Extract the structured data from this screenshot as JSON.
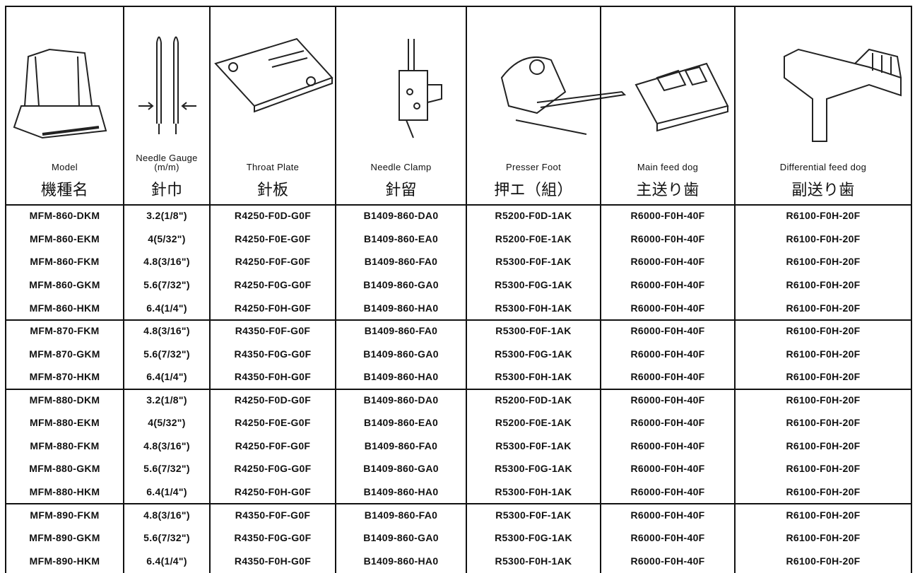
{
  "table": {
    "columns": [
      {
        "en": "Model",
        "ja": "機種名"
      },
      {
        "en": "Needle Gauge (m/m)",
        "ja": "針巾"
      },
      {
        "en": "Throat Plate",
        "ja": "針板"
      },
      {
        "en": "Needle Clamp",
        "ja": "針留"
      },
      {
        "en": "Presser Foot",
        "ja": "押エ（組）"
      },
      {
        "en": "Main feed dog",
        "ja": "主送り歯"
      },
      {
        "en": "Differential feed dog",
        "ja": "副送り歯"
      }
    ],
    "groups": [
      [
        [
          "MFM-860-DKM",
          "3.2(1/8\")",
          "R4250-F0D-G0F",
          "B1409-860-DA0",
          "R5200-F0D-1AK",
          "R6000-F0H-40F",
          "R6100-F0H-20F"
        ],
        [
          "MFM-860-EKM",
          "4(5/32\")",
          "R4250-F0E-G0F",
          "B1409-860-EA0",
          "R5200-F0E-1AK",
          "R6000-F0H-40F",
          "R6100-F0H-20F"
        ],
        [
          "MFM-860-FKM",
          "4.8(3/16\")",
          "R4250-F0F-G0F",
          "B1409-860-FA0",
          "R5300-F0F-1AK",
          "R6000-F0H-40F",
          "R6100-F0H-20F"
        ],
        [
          "MFM-860-GKM",
          "5.6(7/32\")",
          "R4250-F0G-G0F",
          "B1409-860-GA0",
          "R5300-F0G-1AK",
          "R6000-F0H-40F",
          "R6100-F0H-20F"
        ],
        [
          "MFM-860-HKM",
          "6.4(1/4\")",
          "R4250-F0H-G0F",
          "B1409-860-HA0",
          "R5300-F0H-1AK",
          "R6000-F0H-40F",
          "R6100-F0H-20F"
        ]
      ],
      [
        [
          "MFM-870-FKM",
          "4.8(3/16\")",
          "R4350-F0F-G0F",
          "B1409-860-FA0",
          "R5300-F0F-1AK",
          "R6000-F0H-40F",
          "R6100-F0H-20F"
        ],
        [
          "MFM-870-GKM",
          "5.6(7/32\")",
          "R4350-F0G-G0F",
          "B1409-860-GA0",
          "R5300-F0G-1AK",
          "R6000-F0H-40F",
          "R6100-F0H-20F"
        ],
        [
          "MFM-870-HKM",
          "6.4(1/4\")",
          "R4350-F0H-G0F",
          "B1409-860-HA0",
          "R5300-F0H-1AK",
          "R6000-F0H-40F",
          "R6100-F0H-20F"
        ]
      ],
      [
        [
          "MFM-880-DKM",
          "3.2(1/8\")",
          "R4250-F0D-G0F",
          "B1409-860-DA0",
          "R5200-F0D-1AK",
          "R6000-F0H-40F",
          "R6100-F0H-20F"
        ],
        [
          "MFM-880-EKM",
          "4(5/32\")",
          "R4250-F0E-G0F",
          "B1409-860-EA0",
          "R5200-F0E-1AK",
          "R6000-F0H-40F",
          "R6100-F0H-20F"
        ],
        [
          "MFM-880-FKM",
          "4.8(3/16\")",
          "R4250-F0F-G0F",
          "B1409-860-FA0",
          "R5300-F0F-1AK",
          "R6000-F0H-40F",
          "R6100-F0H-20F"
        ],
        [
          "MFM-880-GKM",
          "5.6(7/32\")",
          "R4250-F0G-G0F",
          "B1409-860-GA0",
          "R5300-F0G-1AK",
          "R6000-F0H-40F",
          "R6100-F0H-20F"
        ],
        [
          "MFM-880-HKM",
          "6.4(1/4\")",
          "R4250-F0H-G0F",
          "B1409-860-HA0",
          "R5300-F0H-1AK",
          "R6000-F0H-40F",
          "R6100-F0H-20F"
        ]
      ],
      [
        [
          "MFM-890-FKM",
          "4.8(3/16\")",
          "R4350-F0F-G0F",
          "B1409-860-FA0",
          "R5300-F0F-1AK",
          "R6000-F0H-40F",
          "R6100-F0H-20F"
        ],
        [
          "MFM-890-GKM",
          "5.6(7/32\")",
          "R4350-F0G-G0F",
          "B1409-860-GA0",
          "R5300-F0G-1AK",
          "R6000-F0H-40F",
          "R6100-F0H-20F"
        ],
        [
          "MFM-890-HKM",
          "6.4(1/4\")",
          "R4350-F0H-G0F",
          "B1409-860-HA0",
          "R5300-F0H-1AK",
          "R6000-F0H-40F",
          "R6100-F0H-20F"
        ]
      ]
    ]
  }
}
